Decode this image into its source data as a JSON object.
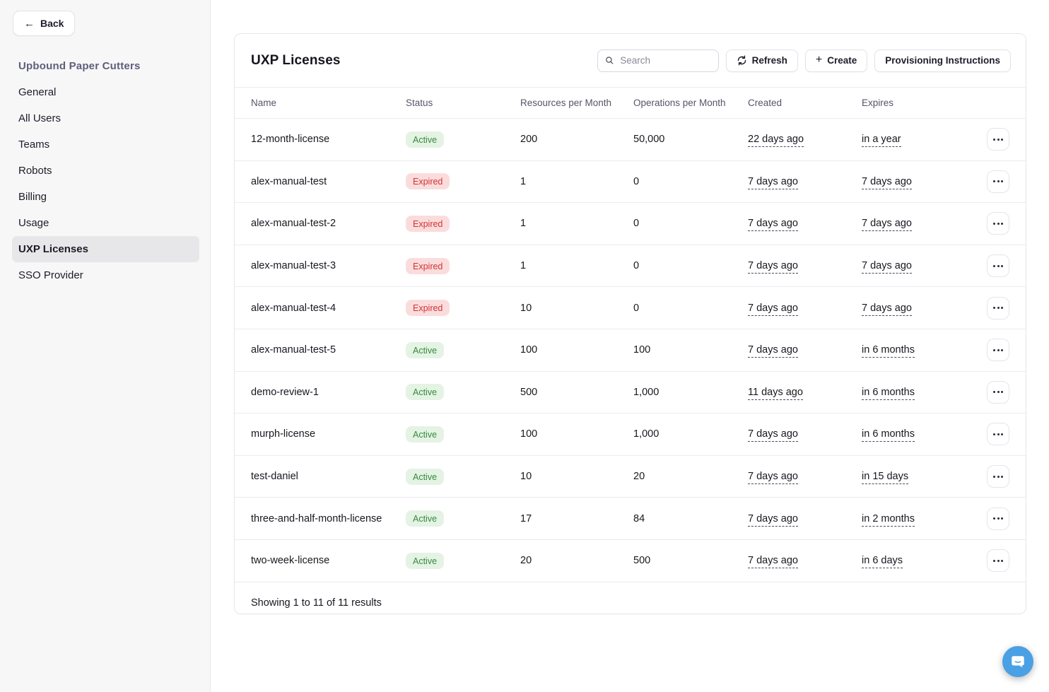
{
  "sidebar": {
    "back_label": "Back",
    "org_title": "Upbound Paper Cutters",
    "items": [
      {
        "label": "General",
        "active": false
      },
      {
        "label": "All Users",
        "active": false
      },
      {
        "label": "Teams",
        "active": false
      },
      {
        "label": "Robots",
        "active": false
      },
      {
        "label": "Billing",
        "active": false
      },
      {
        "label": "Usage",
        "active": false
      },
      {
        "label": "UXP Licenses",
        "active": true
      },
      {
        "label": "SSO Provider",
        "active": false
      }
    ]
  },
  "main": {
    "title": "UXP Licenses",
    "search_placeholder": "Search",
    "refresh_label": "Refresh",
    "create_label": "Create",
    "provisioning_label": "Provisioning Instructions",
    "table": {
      "columns": [
        "Name",
        "Status",
        "Resources per Month",
        "Operations per Month",
        "Created",
        "Expires"
      ],
      "rows": [
        {
          "name": "12-month-license",
          "status": "Active",
          "resources": "200",
          "operations": "50,000",
          "created": "22 days ago",
          "expires": "in a year"
        },
        {
          "name": "alex-manual-test",
          "status": "Expired",
          "resources": "1",
          "operations": "0",
          "created": "7 days ago",
          "expires": "7 days ago"
        },
        {
          "name": "alex-manual-test-2",
          "status": "Expired",
          "resources": "1",
          "operations": "0",
          "created": "7 days ago",
          "expires": "7 days ago"
        },
        {
          "name": "alex-manual-test-3",
          "status": "Expired",
          "resources": "1",
          "operations": "0",
          "created": "7 days ago",
          "expires": "7 days ago"
        },
        {
          "name": "alex-manual-test-4",
          "status": "Expired",
          "resources": "10",
          "operations": "0",
          "created": "7 days ago",
          "expires": "7 days ago"
        },
        {
          "name": "alex-manual-test-5",
          "status": "Active",
          "resources": "100",
          "operations": "100",
          "created": "7 days ago",
          "expires": "in 6 months"
        },
        {
          "name": "demo-review-1",
          "status": "Active",
          "resources": "500",
          "operations": "1,000",
          "created": "11 days ago",
          "expires": "in 6 months"
        },
        {
          "name": "murph-license",
          "status": "Active",
          "resources": "100",
          "operations": "1,000",
          "created": "7 days ago",
          "expires": "in 6 months"
        },
        {
          "name": "test-daniel",
          "status": "Active",
          "resources": "10",
          "operations": "20",
          "created": "7 days ago",
          "expires": "in 15 days"
        },
        {
          "name": "three-and-half-month-license",
          "status": "Active",
          "resources": "17",
          "operations": "84",
          "created": "7 days ago",
          "expires": "in 2 months"
        },
        {
          "name": "two-week-license",
          "status": "Active",
          "resources": "20",
          "operations": "500",
          "created": "7 days ago",
          "expires": "in 6 days"
        }
      ],
      "footer": "Showing 1 to 11 of 11 results"
    }
  },
  "colors": {
    "active_bg": "#e4f3e4",
    "active_text": "#358a3d",
    "expired_bg": "#fbdcdc",
    "expired_text": "#cf3434",
    "chat_blue": "#4aa0e4"
  }
}
